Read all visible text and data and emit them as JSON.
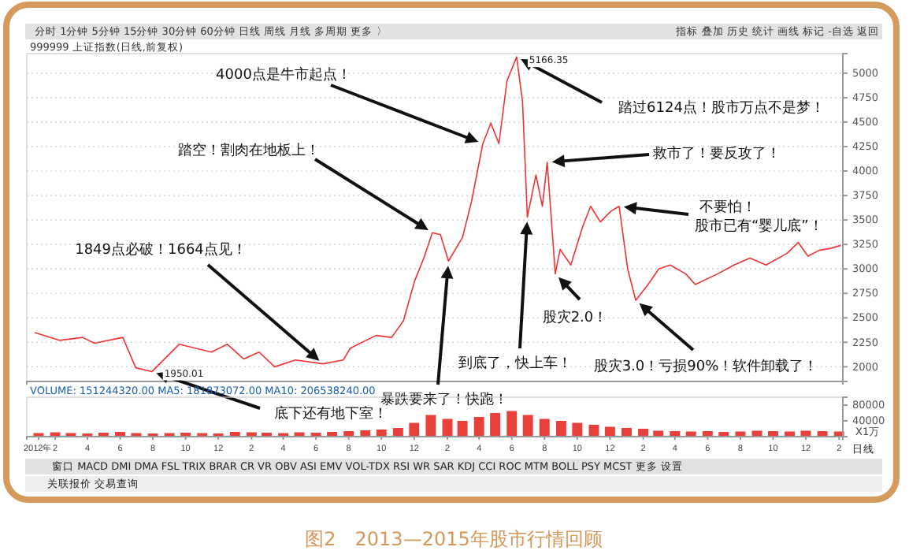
{
  "chart_data": [
    {
      "type": "line",
      "title": "999999 上证指数(日线,前复权)",
      "xlim": [
        "2011-12-10",
        "2016-02-08"
      ],
      "tick_labels": "y",
      "ylim": [
        1850,
        5200
      ],
      "yticks": [
        2000,
        2250,
        2500,
        2750,
        3000,
        3250,
        3500,
        3750,
        4000,
        4250,
        4500,
        4750,
        5000
      ],
      "grid": "y",
      "series": [
        {
          "color": "#ee3333",
          "x": [
            "2011-12-25",
            "2012-02-09",
            "2012-03-23",
            "2012-04-14",
            "2012-06-06",
            "2012-06-30",
            "2012-07-30",
            "2012-09-19",
            "2012-11-18",
            "2012-12-18",
            "2013-01-17",
            "2013-02-15",
            "2013-03-16",
            "2013-04-24",
            "2013-06-14",
            "2013-07-22",
            "2013-08-04",
            "2013-09-21",
            "2013-10-20",
            "2013-11-11",
            "2013-12-02",
            "2013-12-19",
            "2014-01-04",
            "2014-01-19",
            "2014-02-03",
            "2014-03-01",
            "2014-03-18",
            "2014-04-08",
            "2014-04-23",
            "2014-05-08",
            "2014-05-23",
            "2014-06-10",
            "2014-06-21",
            "2014-06-30",
            "2014-07-16",
            "2014-07-28",
            "2014-08-06",
            "2014-08-12",
            "2014-08-21",
            "2014-08-30",
            "2014-09-19",
            "2014-10-11",
            "2014-10-26",
            "2014-11-13",
            "2014-12-03",
            "2014-12-18",
            "2015-01-03",
            "2015-01-18",
            "2015-02-10",
            "2015-03-02",
            "2015-03-23",
            "2015-04-21",
            "2015-05-09",
            "2015-06-20",
            "2015-07-20",
            "2015-08-19",
            "2015-09-18",
            "2015-10-27",
            "2015-11-17",
            "2015-12-05",
            "2015-12-26",
            "2016-01-16",
            "2016-02-04"
          ],
          "values": [
            2350,
            2270,
            2300,
            2240,
            2300,
            1990,
            1950.01,
            2230,
            2150,
            2230,
            2080,
            2150,
            2000,
            2070,
            2030,
            2070,
            2190,
            2320,
            2300,
            2470,
            2880,
            3110,
            3370,
            3350,
            3080,
            3320,
            3690,
            4280,
            4490,
            4280,
            4920,
            5166.35,
            4710,
            3530,
            3960,
            3640,
            4090,
            3640,
            2950,
            3200,
            3040,
            3430,
            3640,
            3480,
            3590,
            3640,
            3000,
            2680,
            2840,
            3000,
            3040,
            2950,
            2840,
            2950,
            3040,
            3110,
            3040,
            3160,
            3270,
            3130,
            3190,
            3210,
            3240
          ]
        }
      ],
      "annotations": [
        {
          "text": "4000点是牛市起点！",
          "x": "2014-04-08",
          "y": 4280
        },
        {
          "text": "踏空！割肉在地板上！",
          "x": "2014-01-04",
          "y": 3370
        },
        {
          "text": "1849点必破！1664点见！",
          "x": "2013-06-14",
          "y": 2030
        },
        {
          "text": "底下还有地下室！",
          "x": "2012-07-30",
          "y": 1950.01
        },
        {
          "text": "暴跌要来了！快跑！",
          "x": "2014-02-03",
          "y": 3080
        },
        {
          "text": "到底了，快上车！",
          "x": "2014-06-30",
          "y": 3530
        },
        {
          "text": "踏过6124点！股市万点不是梦！",
          "x": "2014-06-10",
          "y": 5166.35
        },
        {
          "text": "救市了！要反攻了！",
          "x": "2014-08-06",
          "y": 4090
        },
        {
          "text": "不要怕！",
          "x": "2014-12-18",
          "y": 3640
        },
        {
          "text": "股灾2.0！",
          "x": "2014-08-21",
          "y": 2950
        },
        {
          "text": "股灾3.0！亏损90%！软件卸载了！",
          "x": "2015-01-18",
          "y": 2680
        },
        {
          "text": "5166.35",
          "x": "2014-06-10",
          "y": 5166.35
        },
        {
          "text": "1950.01",
          "x": "2012-07-30",
          "y": 1950.01
        },
        "股市已有“婴儿底”！",
        "分时 1分钟 5分钟 15分钟 30分钟 60分钟 日线 周线 月线 多周期 更多 〉",
        "指标 叠加 历史 统计 画线 标记 -自选 返回",
        "窗口 MACD DMI DMA FSL TRIX BRAR CR VR OBV ASI EMV VOL-TDX RSI WR SAR KDJ CCI ROC MTM BOLL PSY MCST 更多 设置",
        "关联报价 交易查询",
        "日线",
        "图2　2013—2015年股市行情回顾"
      ]
    },
    {
      "type": "bar",
      "title": "VOLUME: 151244320.00  MA5: 181873072.00  MA10: 206538240.00",
      "ylabel": "X1万",
      "color": "#e8403a",
      "xlim": [
        "2011-12-10",
        "2016-02-08"
      ],
      "xticks": [
        {
          "value": "2012-01-01",
          "label": "2012年"
        },
        {
          "value": "2012-02-01",
          "label": "2"
        },
        {
          "value": "2012-04-01",
          "label": "4"
        },
        {
          "value": "2012-06-01",
          "label": "6"
        },
        {
          "value": "2012-08-01",
          "label": "8"
        },
        {
          "value": "2012-10-01",
          "label": "10"
        },
        {
          "value": "2012-12-01",
          "label": "12"
        },
        {
          "value": "2013-02-01",
          "label": "2"
        },
        {
          "value": "2013-04-01",
          "label": "4"
        },
        {
          "value": "2013-06-01",
          "label": "6"
        },
        {
          "value": "2013-08-01",
          "label": "8"
        },
        {
          "value": "2013-10-01",
          "label": "10"
        },
        {
          "value": "2013-12-01",
          "label": "12"
        },
        {
          "value": "2014-02-01",
          "label": "2"
        },
        {
          "value": "2014-04-01",
          "label": "4"
        },
        {
          "value": "2014-06-01",
          "label": "6"
        },
        {
          "value": "2014-08-01",
          "label": "8"
        },
        {
          "value": "2014-10-01",
          "label": "10"
        },
        {
          "value": "2014-12-01",
          "label": "12"
        },
        {
          "value": "2015-02-01",
          "label": "2"
        },
        {
          "value": "2015-04-01",
          "label": "4"
        },
        {
          "value": "2015-06-01",
          "label": "6"
        },
        {
          "value": "2015-08-01",
          "label": "8"
        },
        {
          "value": "2015-10-01",
          "label": "10"
        },
        {
          "value": "2015-12-01",
          "label": "12"
        },
        {
          "value": "2016-02-01",
          "label": "2"
        }
      ],
      "ylim": [
        0,
        100000
      ],
      "yticks": [
        40000,
        80000
      ],
      "x": [
        "2012-01",
        "2012-02",
        "2012-03",
        "2012-04",
        "2012-05",
        "2012-06",
        "2012-07",
        "2012-08",
        "2012-09",
        "2012-10",
        "2012-11",
        "2012-12",
        "2013-01",
        "2013-02",
        "2013-03",
        "2013-04",
        "2013-05",
        "2013-06",
        "2013-07",
        "2013-08",
        "2013-09",
        "2013-10",
        "2013-11",
        "2013-12",
        "2014-01",
        "2014-02",
        "2014-03",
        "2014-04",
        "2014-05",
        "2014-06",
        "2014-07",
        "2014-08",
        "2014-09",
        "2014-10",
        "2014-11",
        "2014-12",
        "2015-01",
        "2015-02",
        "2015-03",
        "2015-04",
        "2015-05",
        "2015-06",
        "2015-07",
        "2015-08",
        "2015-09",
        "2015-10",
        "2015-11",
        "2015-12",
        "2016-01",
        "2016-02"
      ],
      "values": [
        9000,
        11000,
        9000,
        8000,
        10000,
        12000,
        9000,
        8000,
        9000,
        10000,
        9000,
        8000,
        12000,
        11000,
        10000,
        9000,
        11000,
        10000,
        12000,
        14000,
        16000,
        18000,
        22000,
        35000,
        55000,
        45000,
        40000,
        50000,
        60000,
        65000,
        55000,
        45000,
        40000,
        35000,
        30000,
        25000,
        22000,
        20000,
        15000,
        14000,
        13000,
        14000,
        12000,
        13000,
        15000,
        14000,
        13000,
        15000,
        14000,
        13000
      ]
    }
  ]
}
